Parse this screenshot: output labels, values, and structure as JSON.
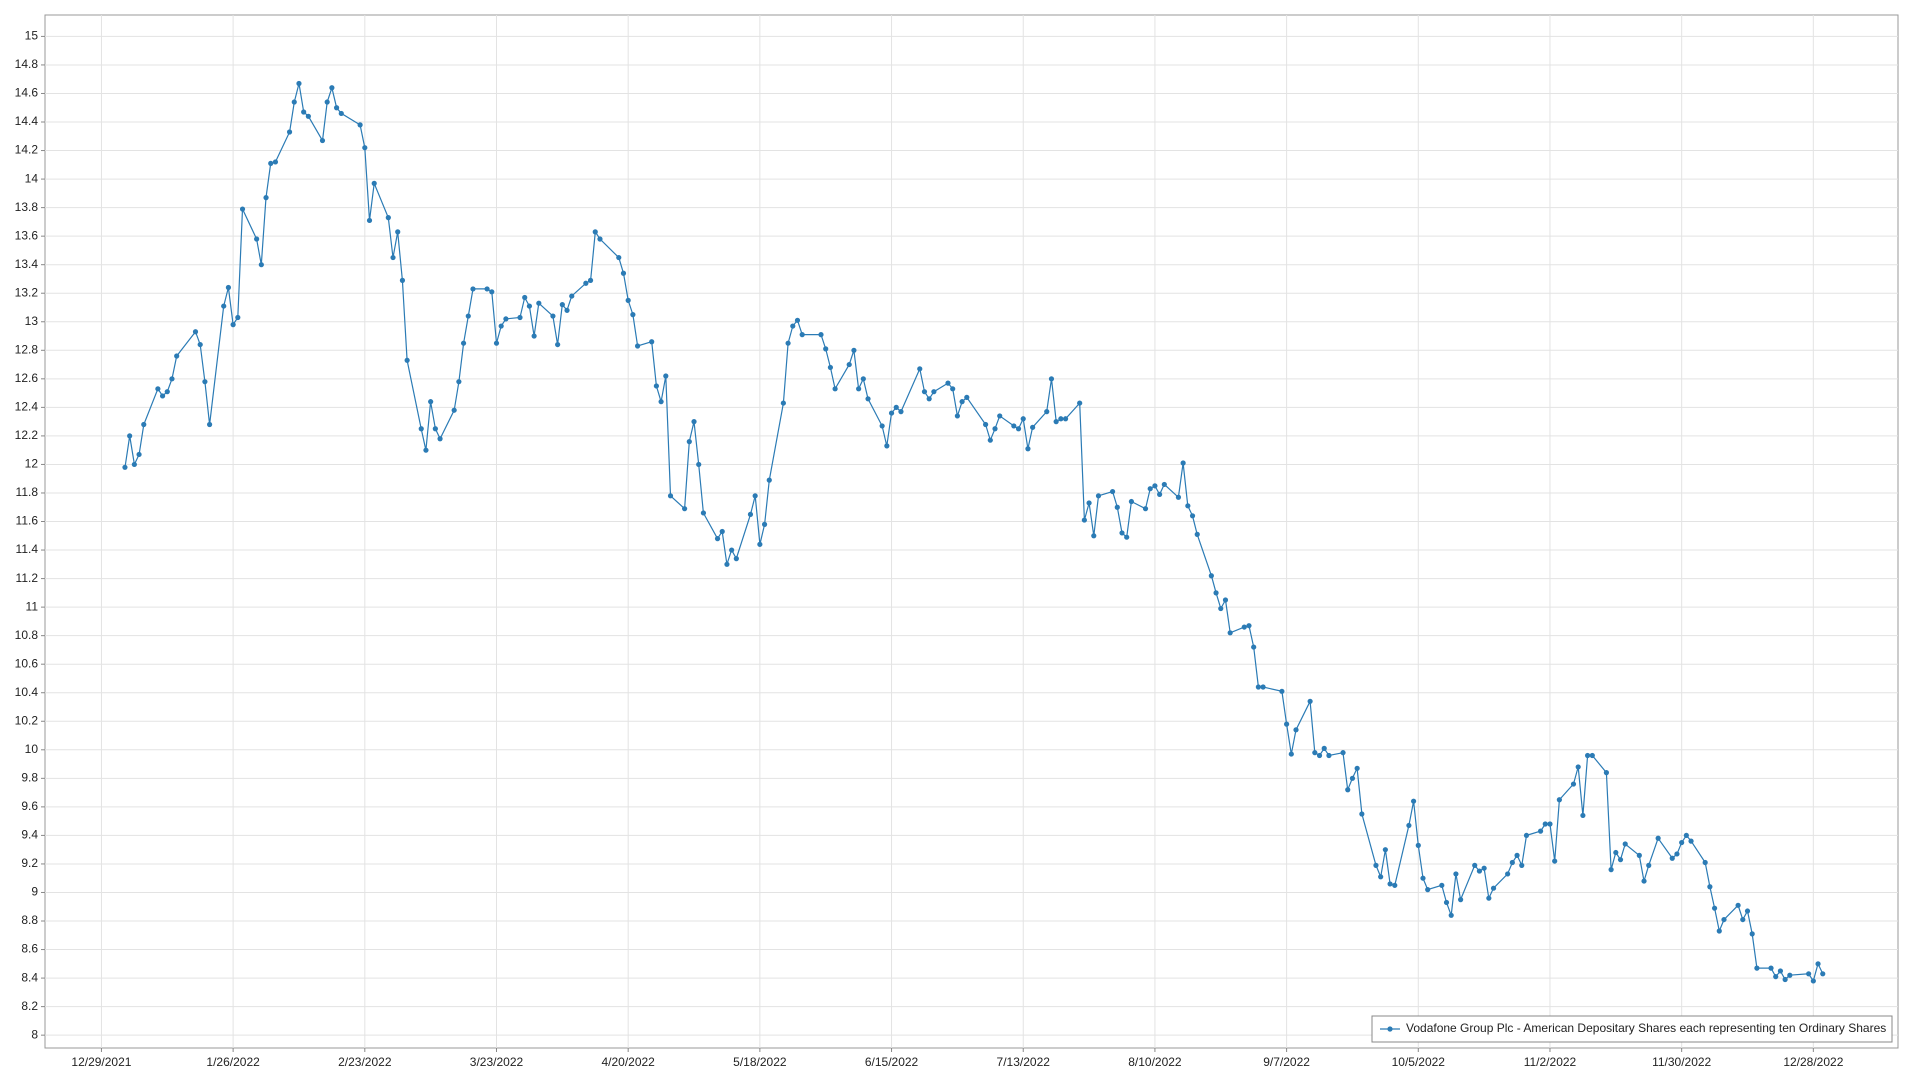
{
  "chart_data": {
    "type": "line",
    "legend": "lower right",
    "grid": true,
    "xlim": [
      "2021-12-17",
      "2023-01-15"
    ],
    "ylim": [
      7.91,
      15.15
    ],
    "xticks": [
      {
        "value": "2021-12-29",
        "label": "12/29/2021"
      },
      {
        "value": "2022-01-26",
        "label": "1/26/2022"
      },
      {
        "value": "2022-02-23",
        "label": "2/23/2022"
      },
      {
        "value": "2022-03-23",
        "label": "3/23/2022"
      },
      {
        "value": "2022-04-20",
        "label": "4/20/2022"
      },
      {
        "value": "2022-05-18",
        "label": "5/18/2022"
      },
      {
        "value": "2022-06-15",
        "label": "6/15/2022"
      },
      {
        "value": "2022-07-13",
        "label": "7/13/2022"
      },
      {
        "value": "2022-08-10",
        "label": "8/10/2022"
      },
      {
        "value": "2022-09-07",
        "label": "9/7/2022"
      },
      {
        "value": "2022-10-05",
        "label": "10/5/2022"
      },
      {
        "value": "2022-11-02",
        "label": "11/2/2022"
      },
      {
        "value": "2022-11-30",
        "label": "11/30/2022"
      },
      {
        "value": "2022-12-28",
        "label": "12/28/2022"
      }
    ],
    "yticks": [
      8,
      8.2,
      8.4,
      8.6,
      8.8,
      9,
      9.2,
      9.4,
      9.6,
      9.8,
      10,
      10.2,
      10.4,
      10.6,
      10.8,
      11,
      11.2,
      11.4,
      11.6,
      11.8,
      12,
      12.2,
      12.4,
      12.6,
      12.8,
      13,
      13.2,
      13.4,
      13.6,
      13.8,
      14,
      14.2,
      14.4,
      14.6,
      14.8,
      15
    ],
    "x": [
      "2022-01-03",
      "2022-01-04",
      "2022-01-05",
      "2022-01-06",
      "2022-01-07",
      "2022-01-10",
      "2022-01-11",
      "2022-01-12",
      "2022-01-13",
      "2022-01-14",
      "2022-01-18",
      "2022-01-19",
      "2022-01-20",
      "2022-01-21",
      "2022-01-24",
      "2022-01-25",
      "2022-01-26",
      "2022-01-27",
      "2022-01-28",
      "2022-01-31",
      "2022-02-01",
      "2022-02-02",
      "2022-02-03",
      "2022-02-04",
      "2022-02-07",
      "2022-02-08",
      "2022-02-09",
      "2022-02-10",
      "2022-02-11",
      "2022-02-14",
      "2022-02-15",
      "2022-02-16",
      "2022-02-17",
      "2022-02-18",
      "2022-02-22",
      "2022-02-23",
      "2022-02-24",
      "2022-02-25",
      "2022-02-28",
      "2022-03-01",
      "2022-03-02",
      "2022-03-03",
      "2022-03-04",
      "2022-03-07",
      "2022-03-08",
      "2022-03-09",
      "2022-03-10",
      "2022-03-11",
      "2022-03-14",
      "2022-03-15",
      "2022-03-16",
      "2022-03-17",
      "2022-03-18",
      "2022-03-21",
      "2022-03-22",
      "2022-03-23",
      "2022-03-24",
      "2022-03-25",
      "2022-03-28",
      "2022-03-29",
      "2022-03-30",
      "2022-03-31",
      "2022-04-01",
      "2022-04-04",
      "2022-04-05",
      "2022-04-06",
      "2022-04-07",
      "2022-04-08",
      "2022-04-11",
      "2022-04-12",
      "2022-04-13",
      "2022-04-14",
      "2022-04-18",
      "2022-04-19",
      "2022-04-20",
      "2022-04-21",
      "2022-04-22",
      "2022-04-25",
      "2022-04-26",
      "2022-04-27",
      "2022-04-28",
      "2022-04-29",
      "2022-05-02",
      "2022-05-03",
      "2022-05-04",
      "2022-05-05",
      "2022-05-06",
      "2022-05-09",
      "2022-05-10",
      "2022-05-11",
      "2022-05-12",
      "2022-05-13",
      "2022-05-16",
      "2022-05-17",
      "2022-05-18",
      "2022-05-19",
      "2022-05-20",
      "2022-05-23",
      "2022-05-24",
      "2022-05-25",
      "2022-05-26",
      "2022-05-27",
      "2022-05-31",
      "2022-06-01",
      "2022-06-02",
      "2022-06-03",
      "2022-06-06",
      "2022-06-07",
      "2022-06-08",
      "2022-06-09",
      "2022-06-10",
      "2022-06-13",
      "2022-06-14",
      "2022-06-15",
      "2022-06-16",
      "2022-06-17",
      "2022-06-21",
      "2022-06-22",
      "2022-06-23",
      "2022-06-24",
      "2022-06-27",
      "2022-06-28",
      "2022-06-29",
      "2022-06-30",
      "2022-07-01",
      "2022-07-05",
      "2022-07-06",
      "2022-07-07",
      "2022-07-08",
      "2022-07-11",
      "2022-07-12",
      "2022-07-13",
      "2022-07-14",
      "2022-07-15",
      "2022-07-18",
      "2022-07-19",
      "2022-07-20",
      "2022-07-21",
      "2022-07-22",
      "2022-07-25",
      "2022-07-26",
      "2022-07-27",
      "2022-07-28",
      "2022-07-29",
      "2022-08-01",
      "2022-08-02",
      "2022-08-03",
      "2022-08-04",
      "2022-08-05",
      "2022-08-08",
      "2022-08-09",
      "2022-08-10",
      "2022-08-11",
      "2022-08-12",
      "2022-08-15",
      "2022-08-16",
      "2022-08-17",
      "2022-08-18",
      "2022-08-19",
      "2022-08-22",
      "2022-08-23",
      "2022-08-24",
      "2022-08-25",
      "2022-08-26",
      "2022-08-29",
      "2022-08-30",
      "2022-08-31",
      "2022-09-01",
      "2022-09-02",
      "2022-09-06",
      "2022-09-07",
      "2022-09-08",
      "2022-09-09",
      "2022-09-12",
      "2022-09-13",
      "2022-09-14",
      "2022-09-15",
      "2022-09-16",
      "2022-09-19",
      "2022-09-20",
      "2022-09-21",
      "2022-09-22",
      "2022-09-23",
      "2022-09-26",
      "2022-09-27",
      "2022-09-28",
      "2022-09-29",
      "2022-09-30",
      "2022-10-03",
      "2022-10-04",
      "2022-10-05",
      "2022-10-06",
      "2022-10-07",
      "2022-10-10",
      "2022-10-11",
      "2022-10-12",
      "2022-10-13",
      "2022-10-14",
      "2022-10-17",
      "2022-10-18",
      "2022-10-19",
      "2022-10-20",
      "2022-10-21",
      "2022-10-24",
      "2022-10-25",
      "2022-10-26",
      "2022-10-27",
      "2022-10-28",
      "2022-10-31",
      "2022-11-01",
      "2022-11-02",
      "2022-11-03",
      "2022-11-04",
      "2022-11-07",
      "2022-11-08",
      "2022-11-09",
      "2022-11-10",
      "2022-11-11",
      "2022-11-14",
      "2022-11-15",
      "2022-11-16",
      "2022-11-17",
      "2022-11-18",
      "2022-11-21",
      "2022-11-22",
      "2022-11-23",
      "2022-11-25",
      "2022-11-28",
      "2022-11-29",
      "2022-11-30",
      "2022-12-01",
      "2022-12-02",
      "2022-12-05",
      "2022-12-06",
      "2022-12-07",
      "2022-12-08",
      "2022-12-09",
      "2022-12-12",
      "2022-12-13",
      "2022-12-14",
      "2022-12-15",
      "2022-12-16",
      "2022-12-19",
      "2022-12-20",
      "2022-12-21",
      "2022-12-22",
      "2022-12-23",
      "2022-12-27",
      "2022-12-28",
      "2022-12-29",
      "2022-12-30"
    ],
    "series": [
      {
        "name": "Vodafone Group Plc - American Depositary Shares each representing ten Ordinary Shares",
        "color": "#2b7bb5",
        "values": [
          11.98,
          12.2,
          12.0,
          12.07,
          12.28,
          12.53,
          12.48,
          12.51,
          12.6,
          12.76,
          12.93,
          12.84,
          12.58,
          12.28,
          13.11,
          13.24,
          12.98,
          13.03,
          13.79,
          13.58,
          13.4,
          13.87,
          14.11,
          14.12,
          14.33,
          14.54,
          14.67,
          14.47,
          14.44,
          14.27,
          14.54,
          14.64,
          14.5,
          14.46,
          14.38,
          14.22,
          13.71,
          13.97,
          13.73,
          13.45,
          13.63,
          13.29,
          12.73,
          12.25,
          12.1,
          12.44,
          12.25,
          12.18,
          12.38,
          12.58,
          12.85,
          13.04,
          13.23,
          13.23,
          13.21,
          12.85,
          12.97,
          13.02,
          13.03,
          13.17,
          13.11,
          12.9,
          13.13,
          13.04,
          12.84,
          13.12,
          13.08,
          13.18,
          13.27,
          13.29,
          13.63,
          13.58,
          13.45,
          13.34,
          13.15,
          13.05,
          12.83,
          12.86,
          12.55,
          12.44,
          12.62,
          11.78,
          11.69,
          12.16,
          12.3,
          12.0,
          11.66,
          11.48,
          11.53,
          11.3,
          11.4,
          11.34,
          11.65,
          11.78,
          11.44,
          11.58,
          11.89,
          12.43,
          12.85,
          12.97,
          13.01,
          12.91,
          12.91,
          12.81,
          12.68,
          12.53,
          12.7,
          12.8,
          12.53,
          12.6,
          12.46,
          12.27,
          12.13,
          12.36,
          12.4,
          12.37,
          12.67,
          12.51,
          12.46,
          12.51,
          12.57,
          12.53,
          12.34,
          12.44,
          12.47,
          12.28,
          12.17,
          12.25,
          12.34,
          12.27,
          12.25,
          12.32,
          12.11,
          12.26,
          12.37,
          12.6,
          12.3,
          12.32,
          12.32,
          12.43,
          11.61,
          11.73,
          11.5,
          11.78,
          11.81,
          11.7,
          11.52,
          11.49,
          11.74,
          11.69,
          11.83,
          11.85,
          11.79,
          11.86,
          11.77,
          12.01,
          11.71,
          11.64,
          11.51,
          11.22,
          11.1,
          10.99,
          11.05,
          10.82,
          10.86,
          10.87,
          10.72,
          10.44,
          10.44,
          10.41,
          10.18,
          9.97,
          10.14,
          10.34,
          9.98,
          9.96,
          10.01,
          9.96,
          9.98,
          9.72,
          9.8,
          9.87,
          9.55,
          9.19,
          9.11,
          9.3,
          9.06,
          9.05,
          9.47,
          9.64,
          9.33,
          9.1,
          9.02,
          9.05,
          8.93,
          8.84,
          9.13,
          8.95,
          9.19,
          9.15,
          9.17,
          8.96,
          9.03,
          9.13,
          9.21,
          9.26,
          9.19,
          9.4,
          9.43,
          9.48,
          9.48,
          9.22,
          9.65,
          9.76,
          9.88,
          9.54,
          9.96,
          9.96,
          9.84,
          9.16,
          9.28,
          9.23,
          9.34,
          9.26,
          9.08,
          9.19,
          9.38,
          9.24,
          9.27,
          9.35,
          9.4,
          9.36,
          9.21,
          9.04,
          8.89,
          8.73,
          8.81,
          8.91,
          8.81,
          8.87,
          8.71,
          8.47,
          8.47,
          8.41,
          8.45,
          8.39,
          8.42,
          8.43,
          8.38,
          8.5,
          8.43
        ]
      }
    ]
  }
}
